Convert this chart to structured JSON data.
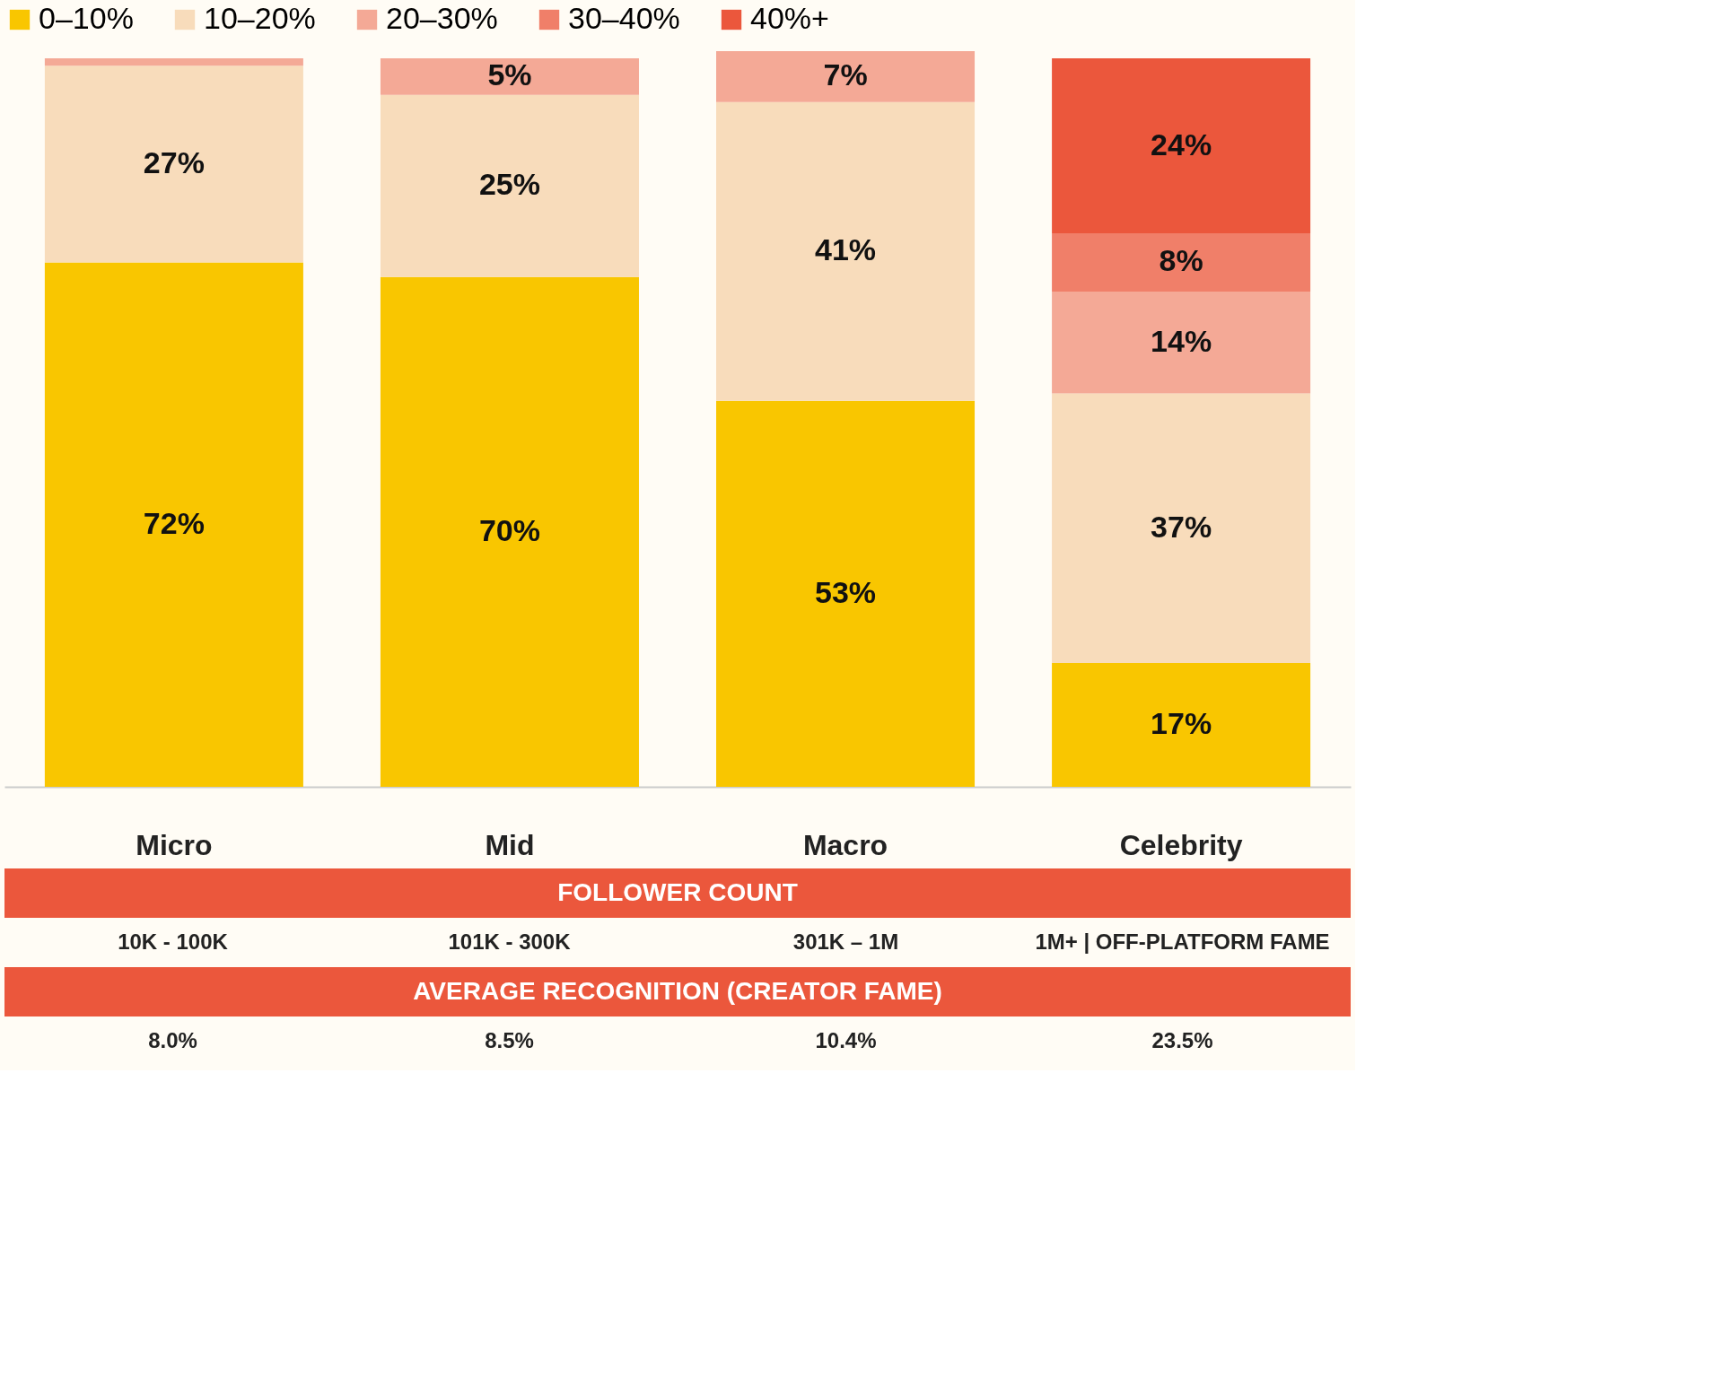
{
  "chart_data": {
    "type": "bar",
    "stacked": true,
    "legend": "top",
    "categories": [
      "Micro",
      "Mid",
      "Macro",
      "Celebrity"
    ],
    "series": [
      {
        "name": "0–10%",
        "color": "#f9c600",
        "values": [
          72,
          70,
          53,
          17
        ],
        "value_labels": [
          "72%",
          "70%",
          "53%",
          "17%"
        ]
      },
      {
        "name": "10–20%",
        "color": "#f8dcbb",
        "values": [
          27,
          25,
          41,
          37
        ],
        "value_labels": [
          "27%",
          "25%",
          "41%",
          "37%"
        ]
      },
      {
        "name": "20–30%",
        "color": "#f4a996",
        "values": [
          1,
          5,
          7,
          14
        ],
        "value_labels": [
          null,
          "5%",
          "7%",
          "14%"
        ]
      },
      {
        "name": "30–40%",
        "color": "#f07f69",
        "values": [
          null,
          null,
          null,
          8
        ],
        "value_labels": [
          null,
          null,
          null,
          "8%"
        ]
      },
      {
        "name": "40%+",
        "color": "#eb573c",
        "values": [
          null,
          null,
          null,
          24
        ],
        "value_labels": [
          null,
          null,
          null,
          "24%"
        ]
      }
    ],
    "annotations": [
      "FOLLOWER COUNT",
      "10K - 100K",
      "101K - 300K",
      "301K – 1M",
      "1M+ | OFF-PLATFORM FAME",
      "AVERAGE RECOGNITION (CREATOR FAME)",
      "8.0%",
      "8.5%",
      "10.4%",
      "23.5%"
    ]
  }
}
